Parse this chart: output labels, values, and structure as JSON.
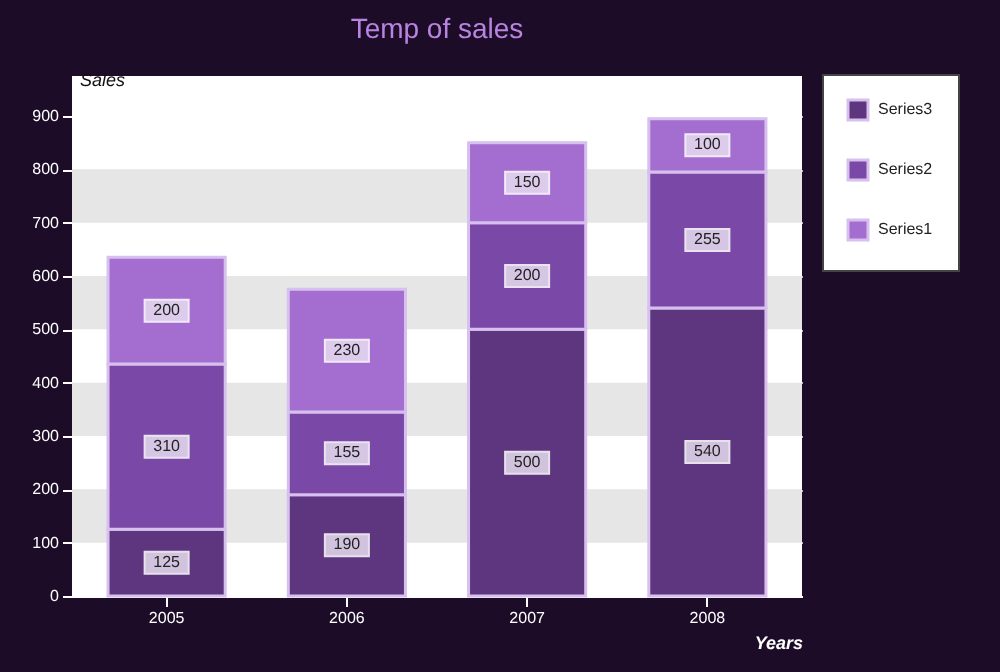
{
  "chart_data": {
    "type": "bar",
    "title": "Temp of sales",
    "xlabel": "Years",
    "ylabel": "Sales",
    "categories": [
      "2005",
      "2006",
      "2007",
      "2008"
    ],
    "stacked": true,
    "data_labels": true,
    "grid": "y",
    "legend": "top right",
    "ylim": [
      0,
      975
    ],
    "yticks": [
      0,
      100,
      200,
      300,
      400,
      500,
      600,
      700,
      800,
      900
    ],
    "series": [
      {
        "name": "Series3",
        "color": "#5e3680",
        "values": [
          125,
          190,
          500,
          540
        ]
      },
      {
        "name": "Series2",
        "color": "#7a48a6",
        "values": [
          310,
          155,
          200,
          255
        ]
      },
      {
        "name": "Series1",
        "color": "#a46ed0",
        "values": [
          200,
          230,
          150,
          100
        ]
      }
    ]
  }
}
